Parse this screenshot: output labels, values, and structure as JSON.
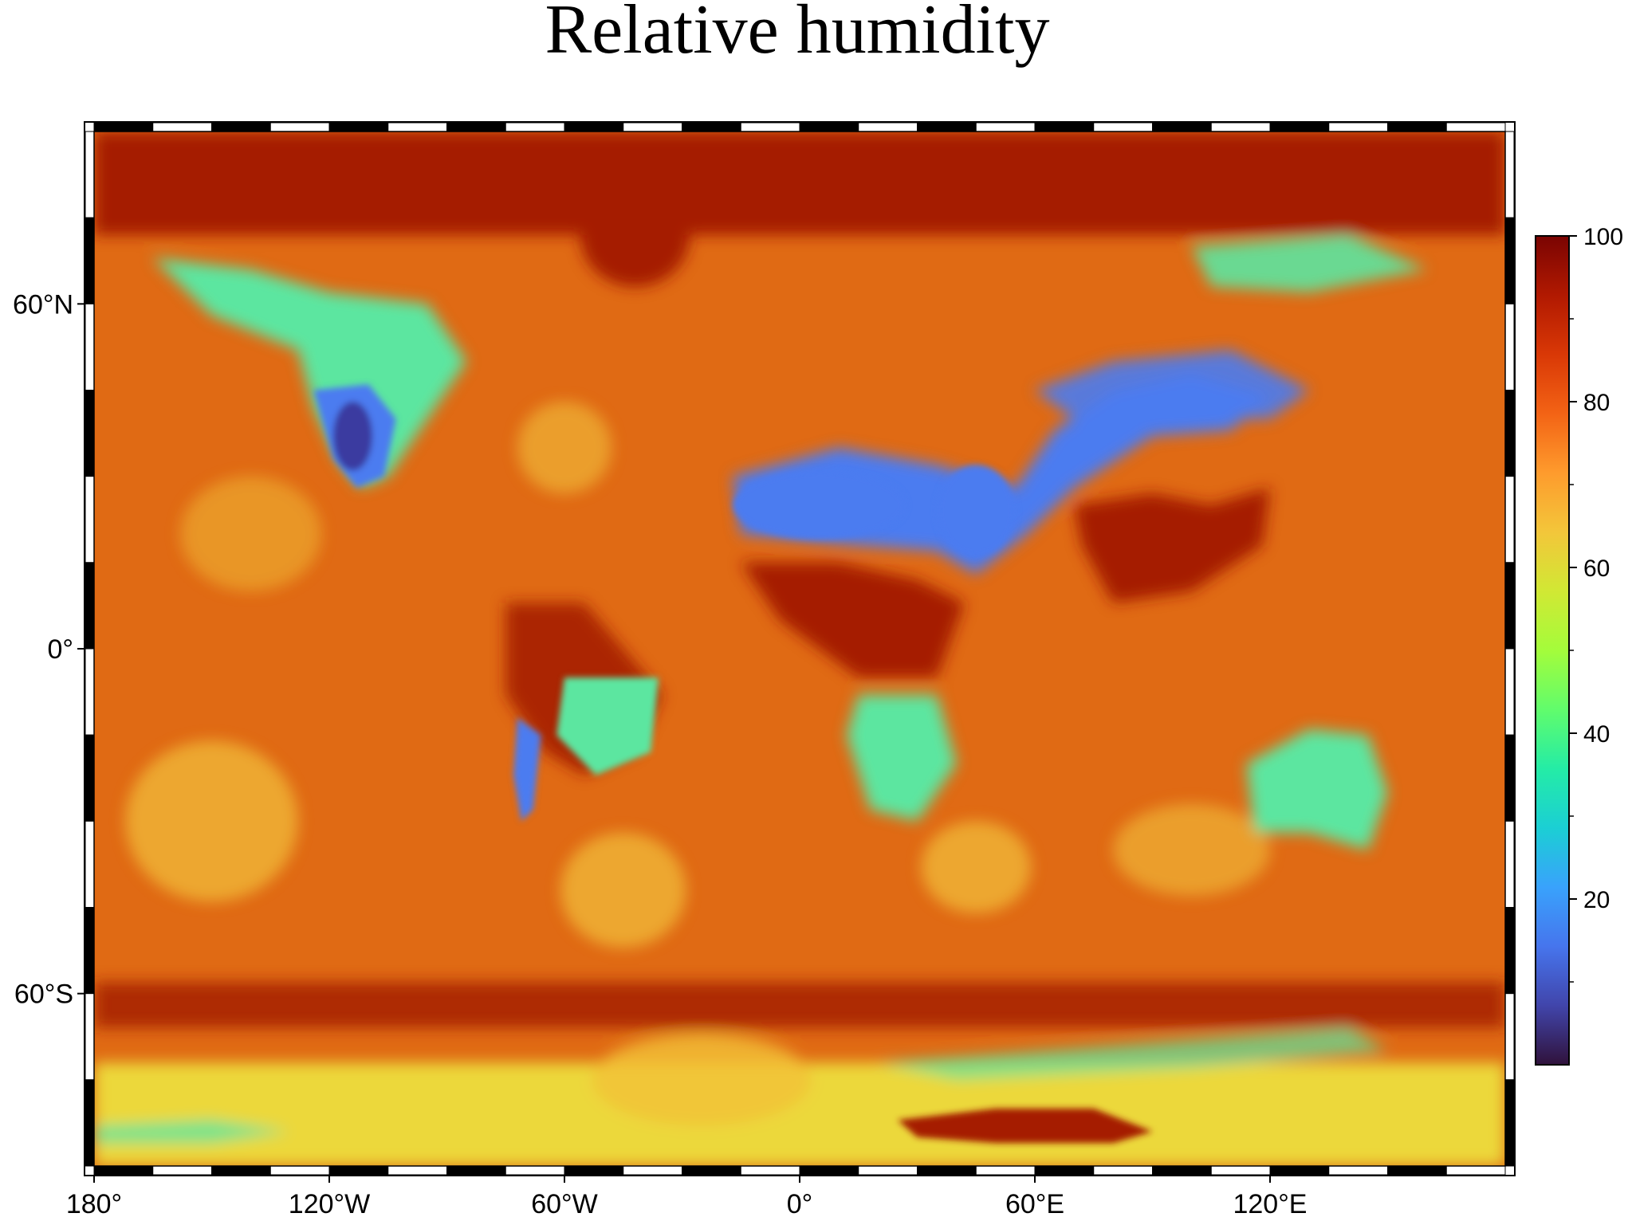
{
  "title": "Relative humidity",
  "map": {
    "projection": "equirectangular",
    "lon_range": [
      -180,
      180
    ],
    "lat_range": [
      -90,
      90
    ],
    "frame_style": "alternating black/white fancy frame"
  },
  "axes": {
    "x_ticks": [
      {
        "value": -180,
        "label": "180°"
      },
      {
        "value": -120,
        "label": "120°W"
      },
      {
        "value": -60,
        "label": "60°W"
      },
      {
        "value": 0,
        "label": "0°"
      },
      {
        "value": 60,
        "label": "60°E"
      },
      {
        "value": 120,
        "label": "120°E"
      }
    ],
    "y_ticks": [
      {
        "value": 60,
        "label": "60°N"
      },
      {
        "value": 0,
        "label": "0°"
      },
      {
        "value": -60,
        "label": "60°S"
      }
    ]
  },
  "colorbar": {
    "range": [
      0,
      100
    ],
    "ticks": [
      {
        "value": 100,
        "label": "100"
      },
      {
        "value": 80,
        "label": "80"
      },
      {
        "value": 60,
        "label": "60"
      },
      {
        "value": 40,
        "label": "40"
      },
      {
        "value": 20,
        "label": "20"
      }
    ],
    "colormap": [
      "#30123b",
      "#4145ab",
      "#4675ed",
      "#39a2fc",
      "#1bcfd4",
      "#24eca6",
      "#61fc6c",
      "#a4fc3b",
      "#d1e834",
      "#f3c63a",
      "#fe9b2d",
      "#f36315",
      "#d93806",
      "#b11901",
      "#7a0402"
    ]
  },
  "colors": {
    "ocean_base": "#e06a14",
    "polar_high": "#a51c02",
    "desert_dry": "#4b7cf0",
    "very_dry": "#3a3aa0",
    "semi_dry": "#5ce6a0",
    "mid_humid": "#f2c23a",
    "antarctic_moist": "#ecd83a"
  }
}
